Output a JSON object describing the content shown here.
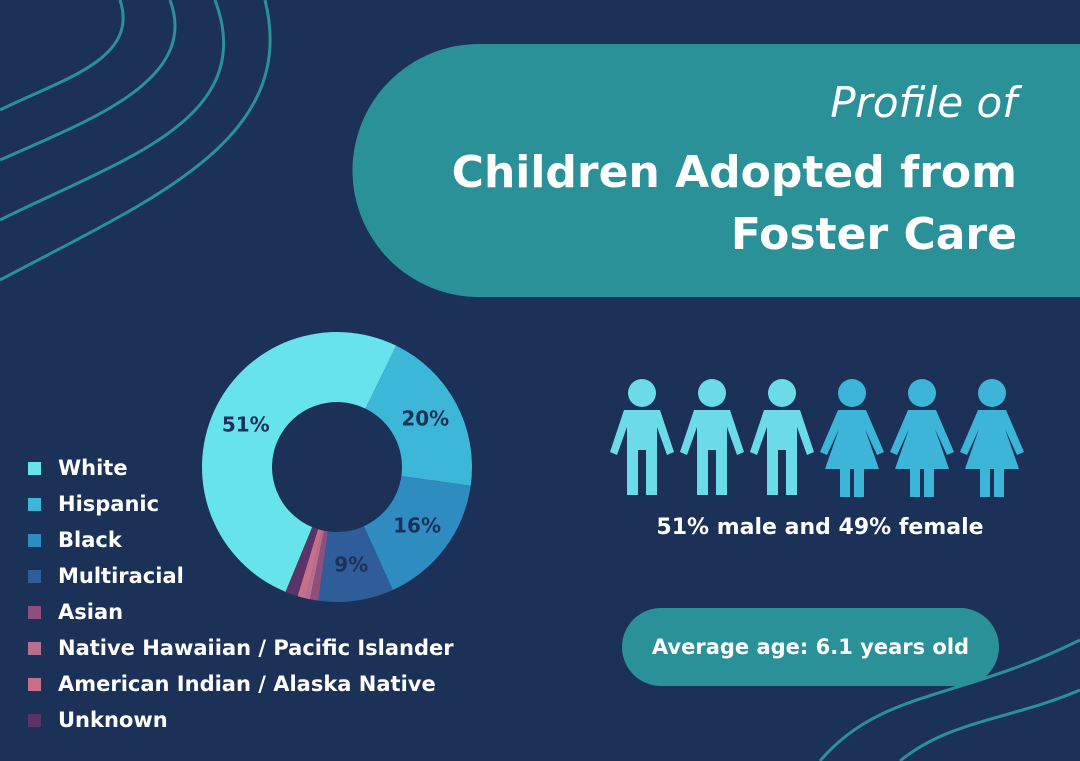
{
  "header": {
    "kicker": "Profile of",
    "title": "Children Adopted from Foster Care"
  },
  "chart_data": {
    "type": "donut",
    "categories": [
      "White",
      "Hispanic",
      "Black",
      "Multiracial",
      "Asian",
      "Native Hawaiian / Pacific Islander",
      "American Indian / Alaska Native",
      "Unknown"
    ],
    "values": [
      51,
      20,
      16,
      9,
      1,
      0.5,
      1,
      1.5
    ],
    "value_labels": [
      "51%",
      "20%",
      "16%",
      "9%",
      null,
      null,
      null,
      null
    ],
    "colors": [
      "#67e3ec",
      "#3db7d8",
      "#2e8cc0",
      "#2f5d9a",
      "#8e4f7f",
      "#b86e8e",
      "#c7708a",
      "#5a3468"
    ]
  },
  "stats": {
    "gender": "51% male and 49% female",
    "age": "Average age: 6.1 years old"
  }
}
